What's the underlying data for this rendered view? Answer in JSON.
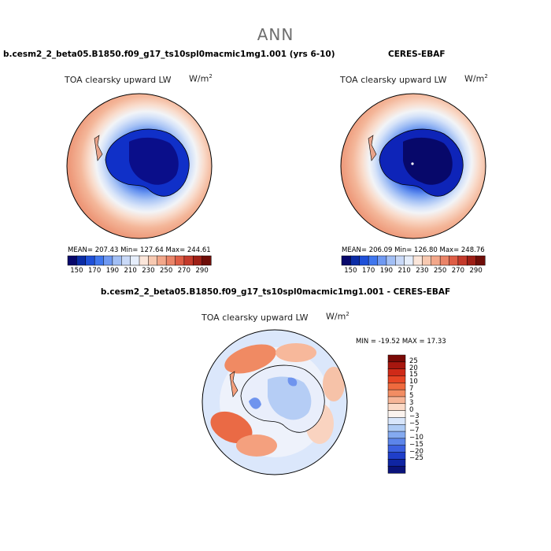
{
  "supertitle": "ANN",
  "panels": [
    {
      "case": "b.cesm2_2_beta05.B1850.f09_g17_ts10spl0macmic1mg1.001 (yrs 6-10)",
      "variable": "TOA clearsky upward LW",
      "units_base": "W/m",
      "units_exp": "2",
      "stats": "MEAN= 207.43   Min= 127.64   Max= 244.61"
    },
    {
      "case": "CERES-EBAF",
      "variable": "TOA clearsky upward LW",
      "units_base": "W/m",
      "units_exp": "2",
      "stats": "MEAN= 206.09   Min= 126.80   Max= 248.76"
    },
    {
      "case": "b.cesm2_2_beta05.B1850.f09_g17_ts10spl0macmic1mg1.001 - CERES-EBAF",
      "variable": "TOA clearsky upward LW",
      "units_base": "W/m",
      "units_exp": "2",
      "stats": "MIN = -19.52 MAX =  17.33"
    }
  ],
  "colorbar_abs": {
    "labels": [
      "150",
      "170",
      "190",
      "210",
      "230",
      "250",
      "270",
      "290"
    ],
    "colors": [
      "#08086b",
      "#0b2ca6",
      "#1f50d8",
      "#3f76ee",
      "#6f99f2",
      "#a2bff5",
      "#c9d9f7",
      "#e6eefb",
      "#fbe6da",
      "#f7c9b1",
      "#f2a78a",
      "#ea8468",
      "#de5d45",
      "#c43a2b",
      "#9e1f16",
      "#6e0d08"
    ]
  },
  "colorbar_diff": {
    "labels": [
      "25",
      "20",
      "15",
      "10",
      "7",
      "5",
      "3",
      "0",
      "−3",
      "−5",
      "−7",
      "−10",
      "−15",
      "−20",
      "−25"
    ],
    "colors": [
      "#7a0a06",
      "#a8170f",
      "#cf2a18",
      "#e74524",
      "#ef6a3e",
      "#f28d63",
      "#f6b597",
      "#fbdac7",
      "#fbf3ee",
      "#d8e6fb",
      "#aecbf5",
      "#84aaf0",
      "#5c85ea",
      "#3b60e0",
      "#1f3ec9",
      "#0f25a3",
      "#0a137a"
    ]
  }
}
